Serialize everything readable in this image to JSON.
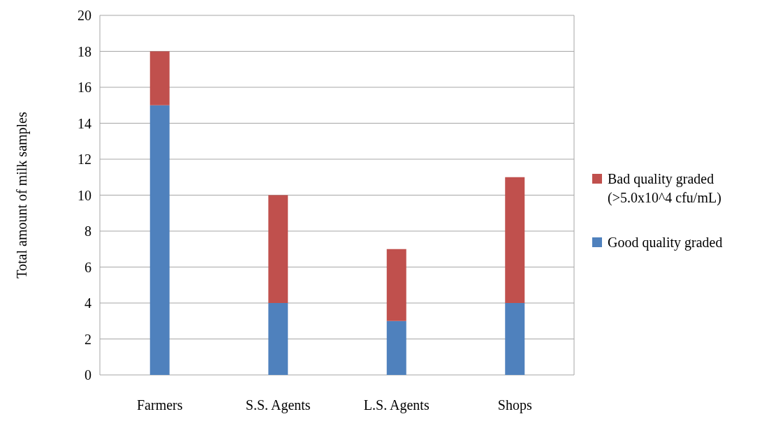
{
  "chart_data": {
    "type": "bar",
    "stacked": true,
    "ylabel": "Total amount of milk samples",
    "categories": [
      "Farmers",
      "S.S. Agents",
      "L.S. Agents",
      "Shops"
    ],
    "series": [
      {
        "name": "Good quality graded",
        "color": "#4f81bd",
        "values": [
          15,
          4,
          3,
          4
        ]
      },
      {
        "name": "Bad quality graded (>5.0x10^4 cfu/mL)",
        "color": "#c0504d",
        "values": [
          3,
          6,
          4,
          7
        ]
      }
    ],
    "ylim": [
      0,
      20
    ],
    "yticks": [
      0,
      2,
      4,
      6,
      8,
      10,
      12,
      14,
      16,
      18,
      20
    ],
    "grid": "y",
    "legend": "right"
  }
}
